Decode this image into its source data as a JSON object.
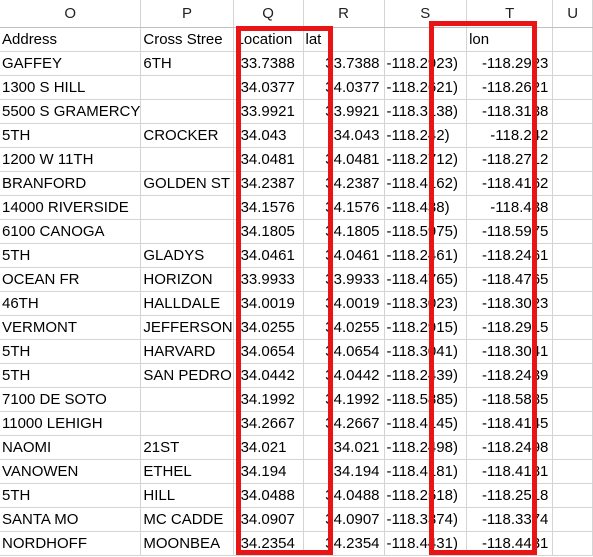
{
  "columns": [
    {
      "letter": "O"
    },
    {
      "letter": "P"
    },
    {
      "letter": "Q"
    },
    {
      "letter": "R"
    },
    {
      "letter": "S"
    },
    {
      "letter": "T"
    },
    {
      "letter": "U"
    }
  ],
  "header_row": [
    "Address",
    "Cross Stree",
    "Location",
    "lat",
    "",
    "lon",
    ""
  ],
  "rows": [
    [
      "GAFFEY",
      "6TH",
      "(33.7388",
      "33.7388",
      "-118.2923)",
      "-118.2923",
      ""
    ],
    [
      "1300 S  HILL",
      "",
      "(34.0377",
      "34.0377",
      "-118.2621)",
      "-118.2621",
      ""
    ],
    [
      "5500 S  GRAMERCY",
      "",
      "(33.9921",
      "33.9921",
      "-118.3138)",
      "-118.3138",
      ""
    ],
    [
      "5TH",
      "CROCKER",
      "(34.043",
      "34.043",
      "-118.242)",
      "-118.242",
      ""
    ],
    [
      "1200 W  11TH",
      "",
      "(34.0481",
      "34.0481",
      "-118.2712)",
      "-118.2712",
      ""
    ],
    [
      "BRANFORD",
      "GOLDEN ST",
      "(34.2387",
      "34.2387",
      "-118.4162)",
      "-118.4162",
      ""
    ],
    [
      "14000    RIVERSIDE",
      "",
      "(34.1576",
      "34.1576",
      "-118.438)",
      "-118.438",
      ""
    ],
    [
      "6100    CANOGA",
      "",
      "(34.1805",
      "34.1805",
      "-118.5975)",
      "-118.5975",
      ""
    ],
    [
      "5TH",
      "GLADYS",
      "(34.0461",
      "34.0461",
      "-118.2461)",
      "-118.2461",
      ""
    ],
    [
      "OCEAN FR",
      "HORIZON",
      "(33.9933",
      "33.9933",
      "-118.4765)",
      "-118.4765",
      ""
    ],
    [
      "46TH",
      "HALLDALE",
      "(34.0019",
      "34.0019",
      "-118.3023)",
      "-118.3023",
      ""
    ],
    [
      "VERMONT",
      "JEFFERSON",
      "(34.0255",
      "34.0255",
      "-118.2915)",
      "-118.2915",
      ""
    ],
    [
      "5TH",
      "HARVARD",
      "(34.0654",
      "34.0654",
      "-118.3041)",
      "-118.3041",
      ""
    ],
    [
      "5TH",
      "SAN PEDRO",
      "(34.0442",
      "34.0442",
      "-118.2439)",
      "-118.2439",
      ""
    ],
    [
      "7100    DE SOTO",
      "",
      "(34.1992",
      "34.1992",
      "-118.5885)",
      "-118.5885",
      ""
    ],
    [
      "11000    LEHIGH",
      "",
      "(34.2667",
      "34.2667",
      "-118.4145)",
      "-118.4145",
      ""
    ],
    [
      "NAOMI",
      "21ST",
      "(34.021",
      "34.021",
      "-118.2498)",
      "-118.2498",
      ""
    ],
    [
      "VANOWEN",
      "ETHEL",
      "(34.194",
      "34.194",
      "-118.4181)",
      "-118.4181",
      ""
    ],
    [
      "5TH",
      "HILL",
      "(34.0488",
      "34.0488",
      "-118.2518)",
      "-118.2518",
      ""
    ],
    [
      "SANTA MO",
      "MC CADDE",
      "(34.0907",
      "34.0907",
      "-118.3374)",
      "-118.3374",
      ""
    ],
    [
      "NORDHOFF",
      "MOONBEA",
      "(34.2354",
      "34.2354",
      "-118.4431)",
      "-118.4431",
      ""
    ]
  ],
  "highlight_color": "#e81416"
}
